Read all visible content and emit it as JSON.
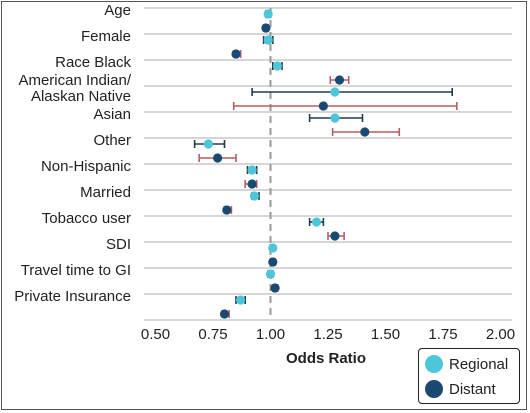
{
  "chart_data": {
    "type": "scatter",
    "xlabel": "Odds Ratio",
    "xlim": [
      0.45,
      2.05
    ],
    "xticks": [
      "0.50",
      "0.75",
      "1.00",
      "1.25",
      "1.50",
      "1.75",
      "2.00"
    ],
    "reference_line": 1.0,
    "grid": "horizontal",
    "legend_position": "bottom-right",
    "categories": [
      "Age",
      "Female",
      "Race  Black",
      "American Indian/\nAlaskan Native",
      "Asian",
      "Other",
      "Non-Hispanic",
      "Married",
      "Tobacco user",
      "SDI",
      "Travel time to GI",
      "Private Insurance"
    ],
    "series": [
      {
        "name": "Regional",
        "color": "#4dc6da",
        "ci_color": "#1e3c4a",
        "points": [
          {
            "category": "Age",
            "or": 0.99,
            "lo": 0.98,
            "hi": 1.0
          },
          {
            "category": "Female",
            "or": 0.99,
            "lo": 0.97,
            "hi": 1.01
          },
          {
            "category": "Race  Black",
            "or": 1.03,
            "lo": 1.01,
            "hi": 1.05
          },
          {
            "category": "American Indian/\nAlaskan Native",
            "or": 1.28,
            "lo": 0.92,
            "hi": 1.79
          },
          {
            "category": "Asian",
            "or": 1.28,
            "lo": 1.17,
            "hi": 1.4
          },
          {
            "category": "Other",
            "or": 0.73,
            "lo": 0.67,
            "hi": 0.8
          },
          {
            "category": "Non-Hispanic",
            "or": 0.92,
            "lo": 0.9,
            "hi": 0.94
          },
          {
            "category": "Married",
            "or": 0.93,
            "lo": 0.92,
            "hi": 0.95
          },
          {
            "category": "Tobacco user",
            "or": 1.2,
            "lo": 1.17,
            "hi": 1.23
          },
          {
            "category": "SDI",
            "or": 1.01,
            "lo": 1.0,
            "hi": 1.01
          },
          {
            "category": "Travel time to GI",
            "or": 1.0,
            "lo": 0.99,
            "hi": 1.01
          },
          {
            "category": "Private Insurance",
            "or": 0.87,
            "lo": 0.85,
            "hi": 0.89
          }
        ]
      },
      {
        "name": "Distant",
        "color": "#1a4a72",
        "ci_color": "#b85d62",
        "points": [
          {
            "category": "Age",
            "or": 0.98,
            "lo": 0.97,
            "hi": 0.99
          },
          {
            "category": "Female",
            "or": 0.85,
            "lo": 0.84,
            "hi": 0.87
          },
          {
            "category": "Race  Black",
            "or": 1.3,
            "lo": 1.26,
            "hi": 1.34
          },
          {
            "category": "American Indian/\nAlaskan Native",
            "or": 1.23,
            "lo": 0.84,
            "hi": 1.81
          },
          {
            "category": "Asian",
            "or": 1.41,
            "lo": 1.27,
            "hi": 1.56
          },
          {
            "category": "Other",
            "or": 0.77,
            "lo": 0.69,
            "hi": 0.85
          },
          {
            "category": "Non-Hispanic",
            "or": 0.92,
            "lo": 0.89,
            "hi": 0.94
          },
          {
            "category": "Married",
            "or": 0.81,
            "lo": 0.8,
            "hi": 0.83
          },
          {
            "category": "Tobacco user",
            "or": 1.28,
            "lo": 1.25,
            "hi": 1.32
          },
          {
            "category": "SDI",
            "or": 1.01,
            "lo": 1.0,
            "hi": 1.02
          },
          {
            "category": "Travel time to GI",
            "or": 1.02,
            "lo": 1.01,
            "hi": 1.03
          },
          {
            "category": "Private Insurance",
            "or": 0.8,
            "lo": 0.79,
            "hi": 0.82
          }
        ]
      }
    ]
  }
}
